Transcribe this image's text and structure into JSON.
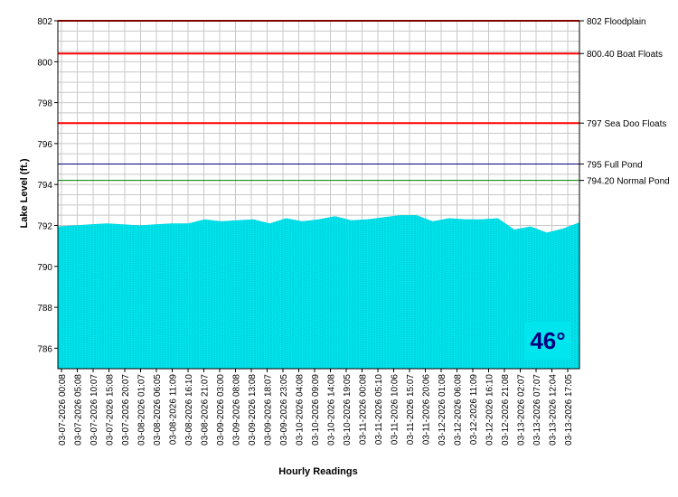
{
  "chart_data": {
    "type": "area",
    "xlabel": "Hourly Readings",
    "ylabel": "Lake Level (ft.)",
    "ylim": [
      785,
      802
    ],
    "yticks": [
      786,
      788,
      790,
      792,
      794,
      796,
      798,
      800,
      802
    ],
    "grid": true,
    "fill_color": "#00e5ee",
    "x_tick_labels": [
      "03-07-2026 00:08",
      "03-07-2026 05:08",
      "03-07-2026 10:07",
      "03-07-2026 15:08",
      "03-07-2026 20:07",
      "03-08-2026 01:07",
      "03-08-2026 06:05",
      "03-08-2026 11:09",
      "03-08-2026 16:10",
      "03-08-2026 21:07",
      "03-09-2026 03:00",
      "03-09-2026 08:08",
      "03-09-2026 13:08",
      "03-09-2026 18:07",
      "03-09-2026 23:05",
      "03-10-2026 04:08",
      "03-10-2026 09:09",
      "03-10-2026 14:08",
      "03-10-2026 19:05",
      "03-11-2026 00:08",
      "03-11-2026 05:10",
      "03-11-2026 10:06",
      "03-11-2026 15:07",
      "03-11-2026 20:06",
      "03-12-2026 01:08",
      "03-12-2026 06:08",
      "03-12-2026 11:09",
      "03-12-2026 16:10",
      "03-12-2026 21:08",
      "03-13-2026 02:07",
      "03-13-2026 07:07",
      "03-13-2026 12:04",
      "03-13-2026 17:05"
    ],
    "level_points": [
      791.95,
      792.0,
      792.05,
      792.1,
      792.05,
      792.0,
      792.05,
      792.1,
      792.1,
      792.3,
      792.2,
      792.25,
      792.3,
      792.1,
      792.35,
      792.2,
      792.3,
      792.45,
      792.25,
      792.3,
      792.4,
      792.5,
      792.5,
      792.2,
      792.35,
      792.3,
      792.3,
      792.35,
      791.8,
      791.95,
      791.65,
      791.85,
      792.15
    ],
    "reference_lines": [
      {
        "value": 802,
        "label": "802 Floodplain",
        "color": "#ff0000"
      },
      {
        "value": 800.4,
        "label": "800.40 Boat Floats",
        "color": "#ff0000"
      },
      {
        "value": 797,
        "label": "797 Sea Doo Floats",
        "color": "#ff0000"
      },
      {
        "value": 795,
        "label": "795 Full Pond",
        "color": "#00007f"
      },
      {
        "value": 794.2,
        "label": "794.20 Normal Pond",
        "color": "#008000"
      }
    ]
  },
  "temperature": "46°"
}
